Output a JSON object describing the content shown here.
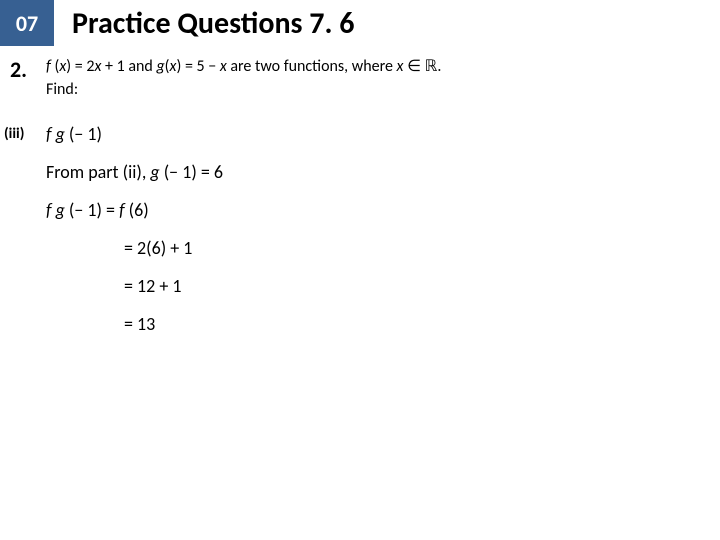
{
  "header": {
    "badge": "07",
    "title": "Practice Questions 7. 6",
    "badge_bg": "#376092"
  },
  "question": {
    "number": "2.",
    "f_fn": "f ",
    "f_paren_open": "(",
    "f_var": "x",
    "f_rest": ") = 2",
    "f_var2": "x",
    "f_plus": " + 1 and ",
    "g_fn": "g",
    "g_paren_open": "(",
    "g_var": "x",
    "g_rest": ") = 5 − ",
    "g_var2": "x ",
    "tail": "are two functions, where ",
    "tail_var": "x",
    "tail_in": " ∈ ℝ.",
    "find": "Find:"
  },
  "part": {
    "label": "(iii)",
    "l0_fg": "f g ",
    "l0_rest": "(− 1)",
    "l1_pre": "From part (ii), ",
    "l1_g": "g ",
    "l1_rest": "(− 1) = 6",
    "l2_fg": "f g ",
    "l2_mid": "(− 1) = ",
    "l2_f": "f ",
    "l2_end": "(6)",
    "eq1": "= 2(6) + 1",
    "eq2": "= 12 + 1",
    "eq3": "= 13"
  }
}
